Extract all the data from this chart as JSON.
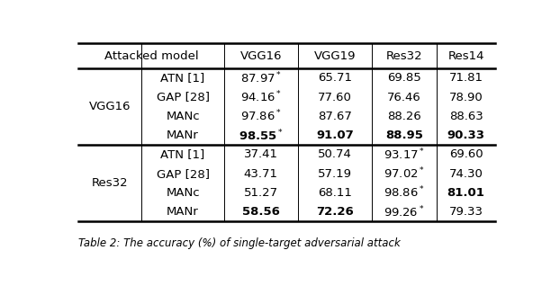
{
  "rows": [
    {
      "method": "ATN [1]",
      "vgg16": "87.97",
      "vgg19": "65.71",
      "res32": "69.85",
      "res14": "71.81",
      "bold_vgg16": false,
      "bold_vgg19": false,
      "bold_res32": false,
      "bold_res14": false,
      "star_vgg16": true,
      "star_vgg19": false,
      "star_res32": false,
      "star_res14": false
    },
    {
      "method": "GAP [28]",
      "vgg16": "94.16",
      "vgg19": "77.60",
      "res32": "76.46",
      "res14": "78.90",
      "bold_vgg16": false,
      "bold_vgg19": false,
      "bold_res32": false,
      "bold_res14": false,
      "star_vgg16": true,
      "star_vgg19": false,
      "star_res32": false,
      "star_res14": false
    },
    {
      "method": "MANc",
      "vgg16": "97.86",
      "vgg19": "87.67",
      "res32": "88.26",
      "res14": "88.63",
      "bold_vgg16": false,
      "bold_vgg19": false,
      "bold_res32": false,
      "bold_res14": false,
      "star_vgg16": true,
      "star_vgg19": false,
      "star_res32": false,
      "star_res14": false
    },
    {
      "method": "MANr",
      "vgg16": "98.55",
      "vgg19": "91.07",
      "res32": "88.95",
      "res14": "90.33",
      "bold_vgg16": true,
      "bold_vgg19": true,
      "bold_res32": true,
      "bold_res14": true,
      "star_vgg16": true,
      "star_vgg19": false,
      "star_res32": false,
      "star_res14": false
    },
    {
      "method": "ATN [1]",
      "vgg16": "37.41",
      "vgg19": "50.74",
      "res32": "93.17",
      "res14": "69.60",
      "bold_vgg16": false,
      "bold_vgg19": false,
      "bold_res32": false,
      "bold_res14": false,
      "star_vgg16": false,
      "star_vgg19": false,
      "star_res32": true,
      "star_res14": false
    },
    {
      "method": "GAP [28]",
      "vgg16": "43.71",
      "vgg19": "57.19",
      "res32": "97.02",
      "res14": "74.30",
      "bold_vgg16": false,
      "bold_vgg19": false,
      "bold_res32": false,
      "bold_res14": false,
      "star_vgg16": false,
      "star_vgg19": false,
      "star_res32": true,
      "star_res14": false
    },
    {
      "method": "MANc",
      "vgg16": "51.27",
      "vgg19": "68.11",
      "res32": "98.86",
      "res14": "81.01",
      "bold_vgg16": false,
      "bold_vgg19": false,
      "bold_res32": false,
      "bold_res14": true,
      "star_vgg16": false,
      "star_vgg19": false,
      "star_res32": true,
      "star_res14": false
    },
    {
      "method": "MANr",
      "vgg16": "58.56",
      "vgg19": "72.26",
      "res32": "99.26",
      "res14": "79.33",
      "bold_vgg16": true,
      "bold_vgg19": true,
      "bold_res32": false,
      "bold_res14": false,
      "star_vgg16": false,
      "star_vgg19": false,
      "star_res32": true,
      "star_res14": false
    }
  ],
  "group_labels": [
    "VGG16",
    "Res32"
  ],
  "col_headers": [
    "Attacked model",
    "VGG16",
    "VGG19",
    "Res32",
    "Res14"
  ],
  "caption": "Table 2: The accuracy (%) of single-target adversarial attack",
  "font_size": 9.5,
  "caption_font_size": 8.5,
  "bg_color": "#ffffff",
  "line_color": "#000000",
  "thick_lw": 1.8,
  "thin_lw": 0.7
}
